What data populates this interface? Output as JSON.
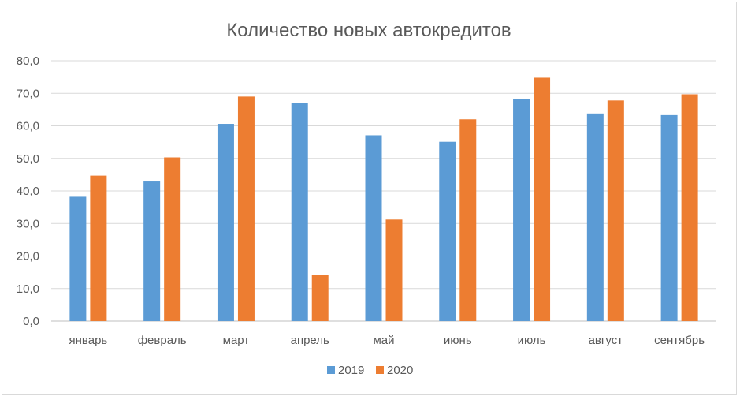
{
  "chart_data": {
    "type": "bar",
    "title": "Количество новых автокредитов",
    "categories": [
      "январь",
      "февраль",
      "март",
      "апрель",
      "май",
      "июнь",
      "июль",
      "август",
      "сентябрь"
    ],
    "series": [
      {
        "name": "2019",
        "color": "#5b9bd5",
        "values": [
          38.2,
          42.9,
          60.6,
          67.0,
          57.1,
          55.1,
          68.2,
          63.8,
          63.3
        ]
      },
      {
        "name": "2020",
        "color": "#ed7d31",
        "values": [
          44.7,
          50.3,
          69.0,
          14.3,
          31.2,
          62.0,
          74.8,
          67.8,
          69.7
        ]
      }
    ],
    "ylim": [
      0,
      80
    ],
    "yticks": [
      "0,0",
      "10,0",
      "20,0",
      "30,0",
      "40,0",
      "50,0",
      "60,0",
      "70,0",
      "80,0"
    ],
    "grid": true,
    "legend_position": "bottom"
  }
}
